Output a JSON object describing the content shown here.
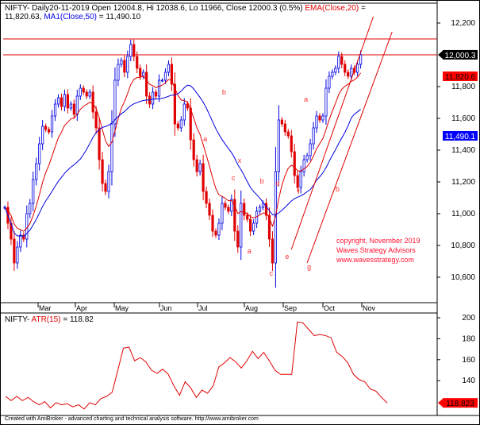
{
  "header": {
    "line1_prefix": "NIFTY- Daily20-11-2019 Open 12004.8, Hi 12038.6, Lo 11966, Close 12000.3 (0.5%) ",
    "ema_label": "EMA(Close,20)",
    "ema_eq": " = ",
    "line2_ema_value": "11,820.63, ",
    "ma_label": "MA1(Close,50)",
    "ma_eq": " = 11,490.10"
  },
  "atr_header": {
    "prefix": "NIFTY- ",
    "label": "ATR(15)",
    "value": " = 118.82"
  },
  "copyright": [
    "copyright, November 2019",
    "Waves Strategy Advisors",
    "www.wavesstrategy.com"
  ],
  "footer": "Created with AmiBroker - advanced charting and technical analysis software. http://www.amibroker.com",
  "colors": {
    "up": "#0000e0",
    "down": "#e00000",
    "ema": "#e00000",
    "ma": "#0000e0",
    "atr": "#e00000",
    "trendline": "#e00000"
  },
  "chart_data": [
    {
      "type": "candlestick",
      "symbol": "NIFTY",
      "ylim": [
        10500,
        12250
      ],
      "y_ticks": [
        "12,200",
        "11,800",
        "11,600",
        "11,400",
        "11,200",
        "11,000",
        "10,800",
        "10,600"
      ],
      "y_tick_values": [
        12200,
        11800,
        11600,
        11400,
        11200,
        11000,
        10800,
        10600
      ],
      "x_month_ticks": [
        "Mar",
        "Apr",
        "May",
        "Jun",
        "Jul",
        "Aug",
        "Sep",
        "Oct",
        "Nov"
      ],
      "close": [
        11040,
        10940,
        10840,
        10690,
        10790,
        10865,
        10840,
        11000,
        11065,
        11215,
        11315,
        11440,
        11550,
        11530,
        11515,
        11615,
        11690,
        11730,
        11675,
        11750,
        11665,
        11690,
        11625,
        11740,
        11790,
        11765,
        11740,
        11765,
        11640,
        11540,
        11340,
        11190,
        11140,
        11265,
        11565,
        11840,
        11940,
        11965,
        11890,
        11990,
        12065,
        11990,
        11915,
        11865,
        11890,
        11740,
        11690,
        11765,
        11740,
        11840,
        11840,
        11890,
        11940,
        11815,
        11565,
        11540,
        11590,
        11690,
        11665,
        11465,
        11340,
        11265,
        11315,
        11140,
        11065,
        10990,
        10890,
        10865,
        10940,
        11065,
        11040,
        11015,
        11090,
        10890,
        10790,
        11065,
        10990,
        10965,
        10890,
        10940,
        11015,
        11040,
        11065,
        10990,
        10840,
        10690,
        11265,
        11590,
        11565,
        11515,
        11490,
        11390,
        11240,
        11165,
        11265,
        11340,
        11365,
        11440,
        11540,
        11615,
        11590,
        11615,
        11790,
        11865,
        11890,
        11915,
        11990,
        11940,
        11890,
        11865,
        11915,
        11890,
        11940,
        12000.3
      ],
      "overlays": [
        {
          "name": "EMA(Close,20)",
          "last": 11820.63,
          "tag": "11,820.6"
        },
        {
          "name": "MA1(Close,50)",
          "last": 11490.1,
          "tag": "11,490.1"
        }
      ],
      "last_close_tag": "12,000.3",
      "horizontal_lines": [
        12100,
        12000
      ],
      "trendlines": [
        {
          "from": [
            91,
            10775
          ],
          "to": [
            117,
            12240
          ]
        },
        {
          "from": [
            96,
            10690
          ],
          "to": [
            123,
            12145
          ]
        }
      ],
      "wave_labels": [
        {
          "text": "a",
          "i": 63,
          "price": 11455
        },
        {
          "text": "b",
          "i": 69,
          "price": 11750
        },
        {
          "text": "x",
          "i": 74,
          "price": 11320
        },
        {
          "text": "c",
          "i": 72,
          "price": 11210
        },
        {
          "text": "b",
          "i": 81,
          "price": 11190
        },
        {
          "text": "d",
          "i": 86,
          "price": 11175
        },
        {
          "text": "f",
          "i": 93,
          "price": 11125
        },
        {
          "text": "a",
          "i": 77,
          "price": 10750
        },
        {
          "text": "c",
          "i": 84,
          "price": 10610
        },
        {
          "text": "e",
          "i": 89,
          "price": 10715
        },
        {
          "text": "g",
          "i": 96,
          "price": 10650
        },
        {
          "text": "a",
          "i": 95,
          "price": 11705
        },
        {
          "text": "b",
          "i": 105,
          "price": 11140
        }
      ]
    },
    {
      "type": "line",
      "name": "ATR(15)",
      "ylim": [
        110,
        205
      ],
      "y_ticks": [
        "200",
        "180",
        "160",
        "140"
      ],
      "y_tick_values": [
        200,
        180,
        160,
        140
      ],
      "last_tag": "118.823",
      "values": [
        125,
        121,
        125,
        121,
        124,
        120,
        117,
        120,
        114,
        119,
        117,
        118,
        115,
        117,
        113,
        119,
        117,
        123,
        125,
        129,
        150,
        171,
        172,
        159,
        162,
        158,
        150,
        147,
        151,
        146,
        135,
        126,
        139,
        133,
        124,
        131,
        128,
        135,
        153,
        157,
        162,
        158,
        152,
        159,
        168,
        161,
        167,
        159,
        150,
        146,
        146,
        146,
        196,
        195,
        189,
        183,
        184,
        183,
        181,
        167,
        163,
        157,
        146,
        141,
        139,
        132,
        130,
        124,
        118.82
      ]
    }
  ]
}
